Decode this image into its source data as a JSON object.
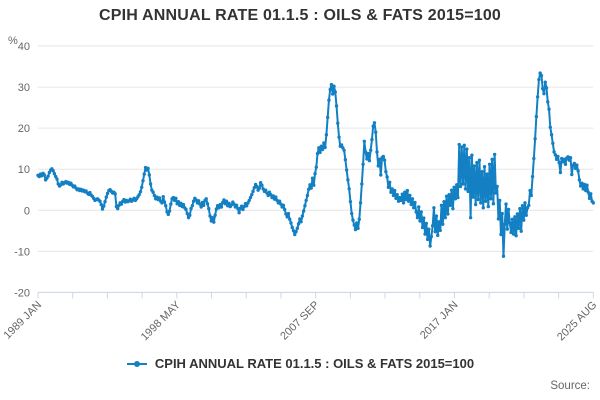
{
  "header": {
    "title": "CPIH ANNUAL RATE 01.1.5 : OILS & FATS 2015=100"
  },
  "legend": {
    "label": "CPIH ANNUAL RATE 01.1.5 : OILS & FATS 2015=100"
  },
  "footer": {
    "source_label": "Source:"
  },
  "colors": {
    "series": "#1380C3",
    "grid": "#E6E6E6",
    "axis": "#CCD6EB",
    "title_text": "#333333",
    "muted_text": "#666666"
  },
  "chart_data": {
    "type": "line",
    "title": "CPIH ANNUAL RATE 01.1.5 : OILS & FATS 2015=100",
    "xlabel": "",
    "ylabel": "%",
    "ylim": [
      -20,
      40
    ],
    "y_ticks": [
      40,
      30,
      20,
      10,
      0,
      -10,
      -20
    ],
    "grid": "horizontal",
    "legend_position": "bottom",
    "x_start": "1989 JAN",
    "x_end": "2025 AUG",
    "x_frequency": "monthly",
    "x_tick_count": 17,
    "x_tick_labels": [
      "1989 JAN",
      "1998 MAY",
      "2007 SEP",
      "2017 JAN",
      "2025 AUG"
    ],
    "x_label_tick_indices": [
      0,
      4,
      8,
      12,
      16
    ],
    "series": [
      {
        "name": "CPIH ANNUAL RATE 01.1.5 : OILS & FATS 2015=100",
        "color": "#1380C3",
        "values": [
          8.5,
          8.2,
          8.8,
          8.4,
          9.0,
          8.6,
          7.4,
          7.8,
          8.3,
          9.2,
          9.8,
          10.1,
          9.6,
          8.9,
          8.2,
          7.6,
          6.4,
          5.9,
          6.2,
          6.8,
          6.4,
          6.7,
          7.0,
          6.6,
          6.8,
          6.3,
          6.6,
          6.1,
          5.7,
          5.9,
          5.4,
          5.0,
          5.2,
          4.8,
          5.1,
          4.7,
          4.9,
          4.5,
          4.7,
          4.2,
          3.9,
          4.3,
          3.7,
          3.4,
          2.9,
          2.4,
          2.6,
          2.8,
          2.5,
          2.2,
          1.4,
          0.3,
          1.0,
          2.1,
          3.2,
          4.1,
          4.8,
          5.0,
          4.6,
          4.2,
          4.4,
          4.0,
          0.9,
          0.4,
          1.2,
          1.8,
          1.5,
          2.2,
          2.6,
          2.0,
          2.4,
          2.1,
          2.3,
          2.7,
          2.2,
          2.5,
          2.9,
          2.4,
          2.8,
          3.3,
          3.8,
          4.5,
          5.6,
          7.2,
          8.8,
          10.4,
          9.8,
          10.2,
          8.6,
          6.4,
          4.9,
          4.4,
          3.6,
          2.8,
          3.2,
          2.6,
          3.0,
          2.2,
          1.8,
          3.3,
          2.0,
          1.1,
          -0.4,
          -1.0,
          -0.2,
          1.5,
          2.8,
          3.1,
          2.4,
          2.9,
          1.6,
          2.1,
          1.2,
          1.7,
          0.9,
          1.4,
          0.6,
          0.2,
          -0.8,
          -1.8,
          -1.2,
          0.4,
          1.1,
          2.2,
          2.9,
          2.5,
          1.8,
          2.3,
          1.5,
          0.8,
          1.9,
          1.2,
          2.4,
          2.8,
          1.6,
          0.4,
          -1.4,
          -2.6,
          -1.8,
          -2.9,
          -1.2,
          0.3,
          1.1,
          0.6,
          1.4,
          0.8,
          1.9,
          2.5,
          1.6,
          2.2,
          1.1,
          1.7,
          0.9,
          1.3,
          2.0,
          1.5,
          0.8,
          1.2,
          0.4,
          -0.6,
          0.5,
          1.0,
          0.2,
          0.9,
          1.6,
          1.1,
          1.8,
          2.4,
          3.1,
          3.8,
          4.6,
          5.5,
          6.3,
          5.8,
          4.9,
          5.4,
          6.7,
          6.1,
          5.2,
          4.6,
          4.9,
          4.2,
          3.6,
          4.4,
          3.8,
          3.1,
          3.5,
          2.7,
          3.2,
          2.4,
          1.8,
          2.2,
          1.5,
          0.8,
          1.2,
          0.2,
          -0.9,
          -1.6,
          -0.8,
          -2.2,
          -3.1,
          -4.2,
          -5.0,
          -5.9,
          -5.2,
          -4.4,
          -3.3,
          -2.1,
          -2.8,
          -1.4,
          -0.2,
          1.1,
          2.4,
          3.6,
          5.1,
          6.2,
          5.4,
          7.8,
          6.1,
          8.9,
          10.5,
          13.8,
          15.2,
          14.1,
          15.6,
          14.8,
          16.4,
          15.3,
          18.4,
          22.6,
          26.8,
          29.4,
          30.6,
          28.3,
          30.2,
          28.8,
          25.4,
          21.2,
          17.8,
          15.6,
          15.9,
          15.2,
          14.6,
          12.3,
          9.8,
          7.4,
          5.2,
          2.1,
          -0.8,
          -2.4,
          -3.6,
          -4.7,
          -3.1,
          -4.4,
          -2.2,
          1.8,
          6.4,
          11.2,
          16.8,
          14.2,
          12.5,
          13.8,
          12.1,
          14.6,
          17.2,
          20.5,
          21.3,
          19.0,
          14.2,
          10.8,
          12.4,
          8.6,
          12.8,
          13.1,
          12.2,
          9.4,
          8.1,
          5.6,
          6.8,
          4.4,
          5.2,
          3.6,
          4.8,
          2.9,
          3.8,
          2.2,
          3.1,
          2.4,
          3.9,
          1.8,
          4.4,
          2.6,
          4.8,
          2.2,
          3.6,
          1.4,
          2.8,
          0.6,
          1.9,
          -0.4,
          -1.8,
          0.8,
          -2.6,
          -0.4,
          -4.2,
          -1.9,
          -5.8,
          -3.2,
          -7.1,
          -4.6,
          -8.7,
          -6.4,
          -3.8,
          0.6,
          -5.2,
          -1.4,
          -6.1,
          -2.8,
          -4.9,
          1.2,
          -3.4,
          2.1,
          -1.8,
          3.4,
          -0.9,
          3.8,
          1.2,
          4.9,
          0.4,
          5.6,
          2.8,
          6.2,
          3.1,
          16.0,
          5.8,
          15.4,
          6.4,
          15.8,
          5.2,
          14.9,
          4.6,
          12.8,
          -1.8,
          13.4,
          3.2,
          10.8,
          1.4,
          11.6,
          2.6,
          12.2,
          1.8,
          9.4,
          0.6,
          10.6,
          2.2,
          8.8,
          0.9,
          11.2,
          2.8,
          12.4,
          1.6,
          13.6,
          4.2,
          5.8,
          -2.1,
          2.4,
          -5.9,
          -0.8,
          -11.2,
          -3.4,
          1.5,
          -4.6,
          0.2,
          -3.1,
          -5.4,
          -2.2,
          -5.8,
          -1.6,
          -6.2,
          -0.9,
          -4.4,
          0.4,
          -5.1,
          1.1,
          -2.4,
          1.8,
          -1.2,
          0.6,
          1.2,
          4.8,
          3.6,
          8.2,
          12.6,
          17.4,
          22.8,
          27.6,
          31.8,
          33.4,
          32.8,
          29.6,
          28.4,
          31.2,
          29.8,
          26.4,
          24.6,
          20.2,
          18.4,
          16.3,
          14.2,
          13.5,
          12.4,
          13.1,
          11.6,
          9.2,
          12.6,
          11.8,
          12.4,
          11.2,
          12.7,
          13.0,
          12.2,
          12.8,
          8.7,
          10.9,
          11.4,
          10.2,
          11.0,
          9.6,
          7.4,
          5.9,
          6.6,
          5.2,
          6.3,
          4.8,
          6.1,
          4.4,
          2.9,
          4.0,
          2.2,
          1.8
        ]
      }
    ]
  }
}
